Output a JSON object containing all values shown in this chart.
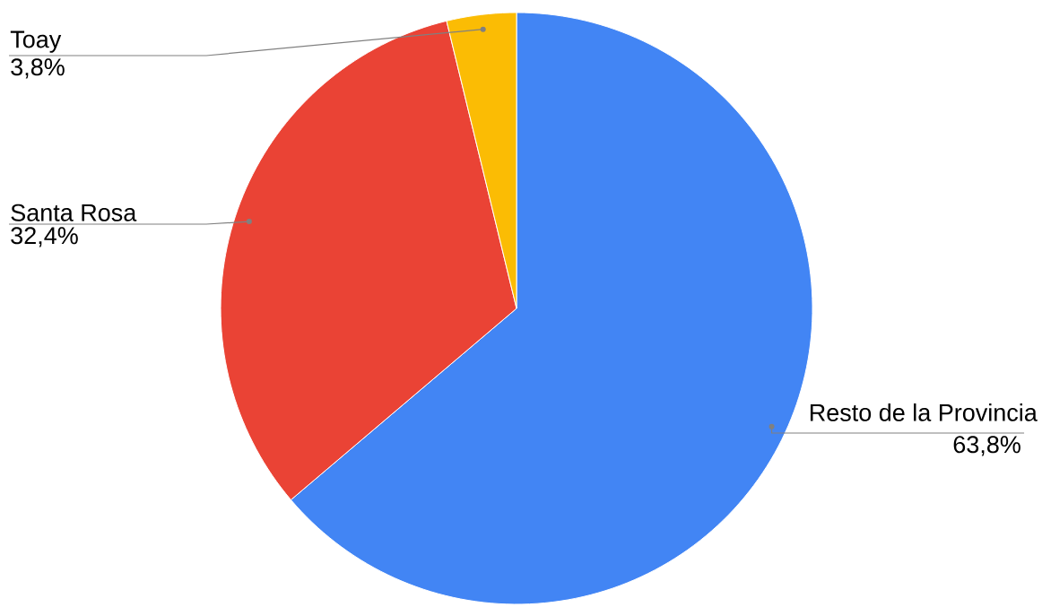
{
  "chart_data": {
    "type": "pie",
    "categories": [
      "Resto de la Provincia",
      "Santa Rosa",
      "Toay"
    ],
    "values": [
      63.8,
      32.4,
      3.8
    ],
    "colors": [
      "#4285f4",
      "#ea4335",
      "#fbbc04"
    ],
    "value_labels": [
      "63,8%",
      "32,4%",
      "3,8%"
    ]
  }
}
